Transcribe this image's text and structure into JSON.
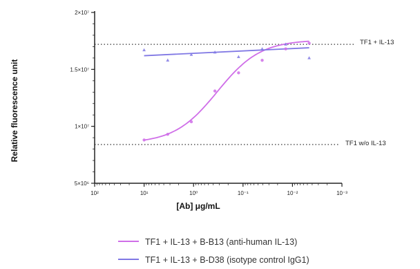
{
  "chart_data": {
    "type": "scatter",
    "xlabel": "[Ab] μg/mL",
    "ylabel": "Relative fluorescence unit",
    "x_scale": "log",
    "x_ticks": [
      "10²",
      "10¹",
      "10⁰",
      "10⁻¹",
      "10⁻²",
      "10⁻³"
    ],
    "y_ticks": [
      "5×10⁶",
      "1×10⁷",
      "1.5×10⁷",
      "2×10⁷"
    ],
    "ylim": [
      5000000,
      20000000
    ],
    "reference_lines": [
      {
        "label": "TF1 + IL-13",
        "y": 17200000
      },
      {
        "label": "TF1 w/o IL-13",
        "y": 8400000
      }
    ],
    "series": [
      {
        "name": "TF1 + IL-13 + B-B13 (anti-human  IL-13)",
        "color": "#cf6ee8",
        "marker": "circle",
        "x": [
          10,
          3.33,
          1.11,
          0.37,
          0.123,
          0.041,
          0.0137,
          0.0046
        ],
        "y": [
          8800000,
          9300000,
          10400000,
          13100000,
          14700000,
          15800000,
          16800000,
          17300000
        ],
        "fit": {
          "bottom": 8500000,
          "top": 17600000,
          "ec50": 0.33,
          "hill": 1.0
        }
      },
      {
        "name": "TF1 + IL-13 + B-D38 (isotype control IgG1)",
        "color": "#8078e4",
        "marker": "triangle",
        "x": [
          10,
          3.33,
          1.11,
          0.37,
          0.123,
          0.041,
          0.0137,
          0.0046
        ],
        "y": [
          16700000,
          15800000,
          16300000,
          16500000,
          16100000,
          16800000,
          17200000,
          16000000
        ],
        "fit": {
          "type": "line",
          "y_start": 16200000,
          "y_end": 16900000
        }
      }
    ]
  }
}
